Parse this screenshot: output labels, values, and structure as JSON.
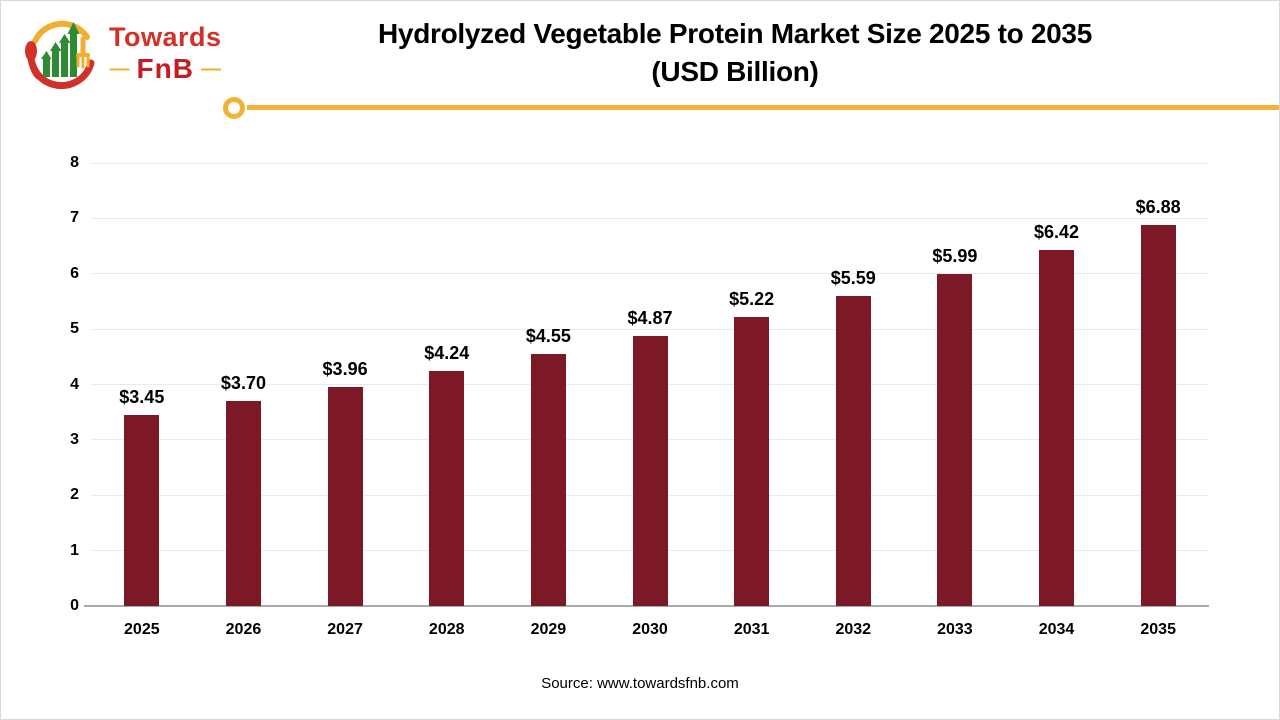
{
  "logo": {
    "brand_line1": "Towards",
    "brand_line2": "FnB",
    "dash": "—"
  },
  "header": {
    "title_line1": "Hydrolyzed Vegetable Protein Market Size 2025 to 2035",
    "title_line2": "(USD Billion)"
  },
  "footer": {
    "source": "Source: www.towardsfnb.com"
  },
  "colors": {
    "bar": "#7d1826",
    "accent_line": "#f2b237",
    "grid": "#eaeaea",
    "axis": "#a9a9a9",
    "title_text": "#000000",
    "logo_red": "#d23129",
    "logo_dark_red": "#c41e24",
    "logo_green": "#2e8b33",
    "logo_yellow": "#f2ae2f"
  },
  "chart_data": {
    "type": "bar",
    "title": "Hydrolyzed Vegetable Protein Market Size 2025 to 2035 (USD Billion)",
    "xlabel": "",
    "ylabel": "",
    "categories": [
      "2025",
      "2026",
      "2027",
      "2028",
      "2029",
      "2030",
      "2031",
      "2032",
      "2033",
      "2034",
      "2035"
    ],
    "values": [
      3.45,
      3.7,
      3.96,
      4.24,
      4.55,
      4.87,
      5.22,
      5.59,
      5.99,
      6.42,
      6.88
    ],
    "value_labels": [
      "$3.45",
      "$3.70",
      "$3.96",
      "$4.24",
      "$4.55",
      "$4.87",
      "$5.22",
      "$5.59",
      "$5.99",
      "$6.42",
      "$6.88"
    ],
    "ylim": [
      0,
      8
    ],
    "ytick_interval": 1,
    "grid": true,
    "legend_position": "none",
    "bar_color": "#7d1826"
  }
}
